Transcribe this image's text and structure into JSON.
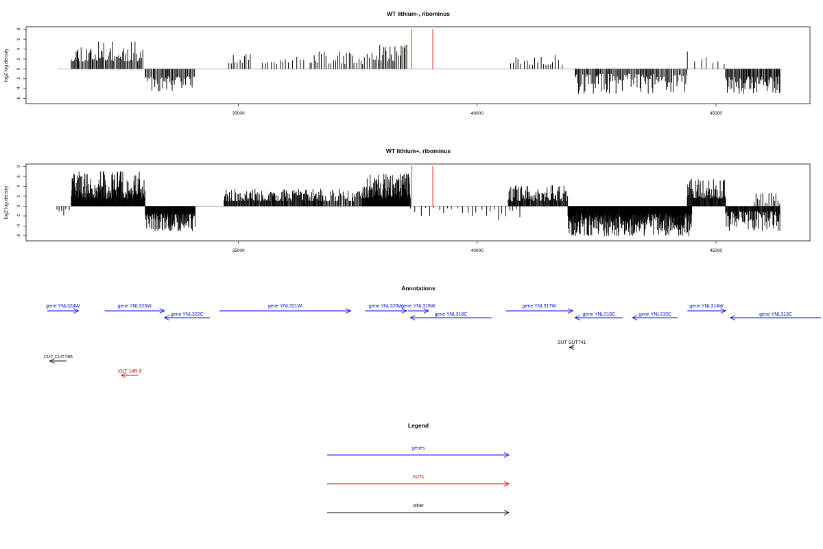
{
  "chart_data": [
    {
      "type": "bar",
      "title": "WT lithium-, ribominus",
      "ylabel": "log2 log density",
      "xlim": [
        31000,
        46400
      ],
      "ylim": [
        -7,
        8.5
      ],
      "yticks": [
        "8",
        "6",
        "4",
        "2",
        "0",
        "-2",
        "-4",
        "-6"
      ],
      "xticks": [
        "35000",
        "40000",
        "45000"
      ],
      "baseline": [
        31200,
        46350
      ],
      "red_lines": [
        38630,
        39070
      ],
      "series": [
        {
          "x_start": 31500,
          "x_end": 33000,
          "sign": 1,
          "min": 1.5,
          "max": 5.5,
          "step": 22,
          "seed": 11
        },
        {
          "x_start": 33050,
          "x_end": 34100,
          "sign": -1,
          "min": 1.5,
          "max": 4.5,
          "step": 22,
          "seed": 12
        },
        {
          "x_start": 34800,
          "x_end": 35300,
          "sign": 1,
          "min": 1.0,
          "max": 3.0,
          "step": 45,
          "seed": 13
        },
        {
          "x_start": 35500,
          "x_end": 36400,
          "sign": 1,
          "min": 1.0,
          "max": 2.8,
          "step": 70,
          "seed": 14
        },
        {
          "x_start": 36500,
          "x_end": 37800,
          "sign": 1,
          "min": 1.0,
          "max": 3.5,
          "step": 45,
          "seed": 15
        },
        {
          "x_start": 37800,
          "x_end": 38550,
          "sign": 1,
          "min": 1.5,
          "max": 5.0,
          "step": 28,
          "seed": 16
        },
        {
          "x_start": 40700,
          "x_end": 41800,
          "sign": 1,
          "min": 0.8,
          "max": 3.8,
          "step": 60,
          "seed": 17
        },
        {
          "x_start": 42050,
          "x_end": 44400,
          "sign": -1,
          "min": 1.0,
          "max": 5.0,
          "step": 22,
          "seed": 18
        },
        {
          "x_start": 44400,
          "x_end": 45200,
          "sign": 1,
          "min": 1.0,
          "max": 3.5,
          "step": 120,
          "seed": 19
        },
        {
          "x_start": 45200,
          "x_end": 46350,
          "sign": -1,
          "min": 1.5,
          "max": 5.0,
          "step": 18,
          "seed": 20
        }
      ]
    },
    {
      "type": "bar",
      "title": "WT lithium+, ribominus",
      "ylabel": "log2 log density",
      "xlim": [
        31000,
        46400
      ],
      "ylim": [
        -7,
        8.5
      ],
      "yticks": [
        "8",
        "6",
        "4",
        "2",
        "0",
        "-2",
        "-4",
        "-6"
      ],
      "xticks": [
        "35000",
        "40000",
        "45000"
      ],
      "baseline": [
        31200,
        46350
      ],
      "red_lines": [
        38630,
        39070
      ],
      "series": [
        {
          "x_start": 31200,
          "x_end": 31500,
          "sign": -1,
          "min": 0.5,
          "max": 2.5,
          "step": 60,
          "seed": 21
        },
        {
          "x_start": 31500,
          "x_end": 33050,
          "sign": 1,
          "min": 1.5,
          "max": 7.0,
          "step": 9,
          "seed": 22
        },
        {
          "x_start": 33050,
          "x_end": 34100,
          "sign": -1,
          "min": 1.5,
          "max": 5.0,
          "step": 9,
          "seed": 23
        },
        {
          "x_start": 34700,
          "x_end": 36800,
          "sign": 1,
          "min": 1.0,
          "max": 3.5,
          "step": 14,
          "seed": 24
        },
        {
          "x_start": 36800,
          "x_end": 37600,
          "sign": 1,
          "min": 1.0,
          "max": 3.5,
          "step": 20,
          "seed": 25
        },
        {
          "x_start": 37600,
          "x_end": 38600,
          "sign": 1,
          "min": 1.5,
          "max": 6.5,
          "step": 8,
          "seed": 26
        },
        {
          "x_start": 38600,
          "x_end": 40000,
          "sign": -1,
          "min": 0.3,
          "max": 2.0,
          "step": 110,
          "seed": 27
        },
        {
          "x_start": 40100,
          "x_end": 40900,
          "sign": -1,
          "min": 0.5,
          "max": 3.0,
          "step": 70,
          "seed": 28
        },
        {
          "x_start": 40650,
          "x_end": 41900,
          "sign": 1,
          "min": 1.0,
          "max": 4.2,
          "step": 14,
          "seed": 29
        },
        {
          "x_start": 41900,
          "x_end": 44500,
          "sign": -1,
          "min": 1.5,
          "max": 6.0,
          "step": 7,
          "seed": 30
        },
        {
          "x_start": 44400,
          "x_end": 45200,
          "sign": 1,
          "min": 1.5,
          "max": 5.5,
          "step": 12,
          "seed": 31
        },
        {
          "x_start": 45200,
          "x_end": 46350,
          "sign": -1,
          "min": 1.0,
          "max": 5.0,
          "step": 12,
          "seed": 32
        },
        {
          "x_start": 45800,
          "x_end": 46350,
          "sign": 1,
          "min": 0.5,
          "max": 3.0,
          "step": 40,
          "seed": 33
        }
      ]
    }
  ],
  "annotations": {
    "title": "Annotations",
    "features": [
      {
        "label": "gene YNL324W",
        "x_start": 31000,
        "x_end": 31650,
        "strand": "+",
        "row": 0,
        "color": "#0000ff"
      },
      {
        "label": "gene YNL323W",
        "x_start": 32200,
        "x_end": 33450,
        "strand": "+",
        "row": 0,
        "color": "#0000ff"
      },
      {
        "label": "gene YNL322C",
        "x_start": 33450,
        "x_end": 34400,
        "strand": "-",
        "row": 1,
        "color": "#0000ff"
      },
      {
        "label": "gene YNL321W",
        "x_start": 34600,
        "x_end": 37350,
        "strand": "+",
        "row": 0,
        "color": "#0000ff"
      },
      {
        "label": "gene YNL320W",
        "x_start": 37650,
        "x_end": 38520,
        "strand": "+",
        "row": 0,
        "color": "#0000ff"
      },
      {
        "label": "gene YNL319W",
        "x_start": 38550,
        "x_end": 38980,
        "strand": "+",
        "row": 0,
        "color": "#0000ff"
      },
      {
        "label": "gene YNL318C",
        "x_start": 38600,
        "x_end": 40300,
        "strand": "-",
        "row": 1,
        "color": "#0000ff"
      },
      {
        "label": "gene YNL317W",
        "x_start": 40600,
        "x_end": 42000,
        "strand": "+",
        "row": 0,
        "color": "#0000ff"
      },
      {
        "label": "gene YNL316C",
        "x_start": 42050,
        "x_end": 43050,
        "strand": "-",
        "row": 1,
        "color": "#0000ff"
      },
      {
        "label": "gene YNL315C",
        "x_start": 43250,
        "x_end": 44200,
        "strand": "-",
        "row": 1,
        "color": "#0000ff"
      },
      {
        "label": "gene YNL314W",
        "x_start": 44400,
        "x_end": 45200,
        "strand": "+",
        "row": 0,
        "color": "#0000ff"
      },
      {
        "label": "gene YNL313C",
        "x_start": 45300,
        "x_end": 47200,
        "strand": "-",
        "row": 1,
        "color": "#0000ff"
      },
      {
        "label": "SUT SUT741",
        "x_start": 41930,
        "x_end": 42030,
        "strand": "-",
        "row": 2,
        "color": "#000000"
      },
      {
        "label": "CUT CUT795",
        "x_start": 31050,
        "x_end": 31400,
        "strand": "-",
        "row": 3,
        "color": "#000000"
      },
      {
        "label": "XUT 14R-9",
        "x_start": 32550,
        "x_end": 32900,
        "strand": "-",
        "row": 4,
        "color": "#e00000"
      }
    ]
  },
  "legend": {
    "title": "Legend",
    "items": [
      {
        "label": "genes",
        "color": "#0000ff"
      },
      {
        "label": "XUTs",
        "color": "#e00000"
      },
      {
        "label": "other",
        "color": "#000000"
      }
    ]
  }
}
